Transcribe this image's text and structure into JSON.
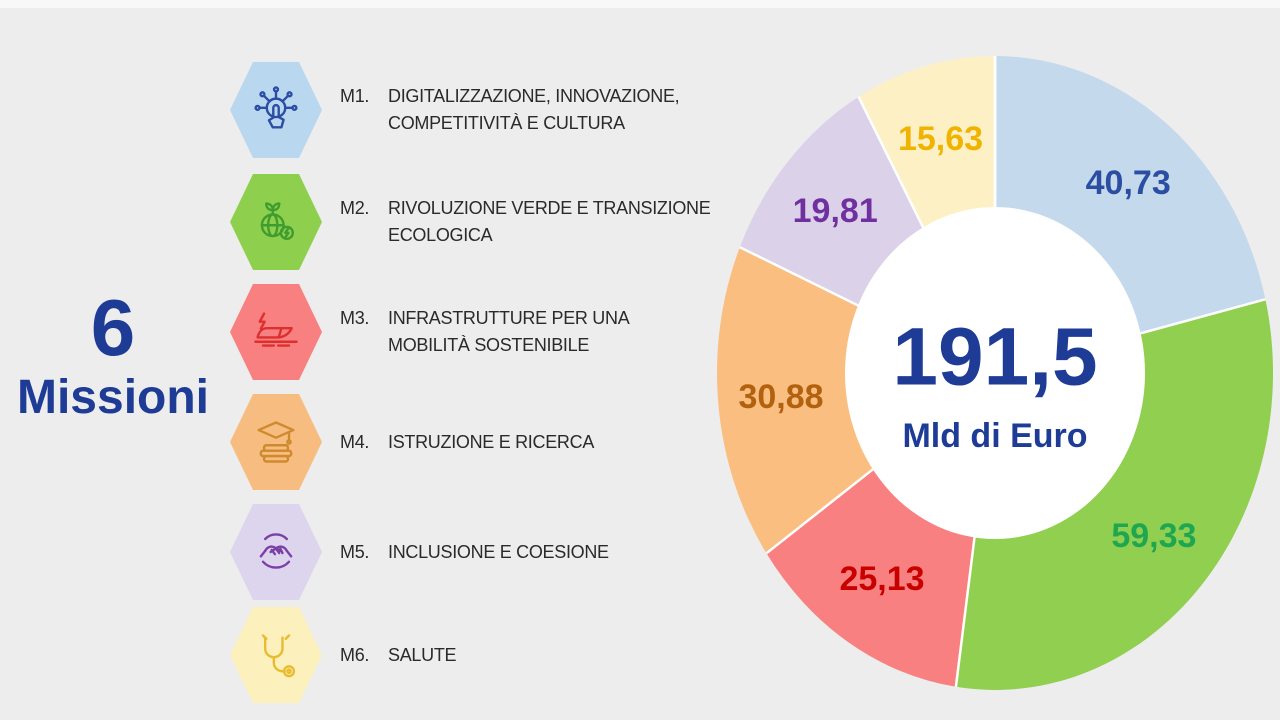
{
  "slide": {
    "background_color": "#EDEDED"
  },
  "header": {
    "big_number": "6",
    "subtitle": "Missioni",
    "text_color": "#1E3C96"
  },
  "missions": [
    {
      "code": "M1.",
      "line1": "DIGITALIZZAZIONE, INNOVAZIONE,",
      "line2": "COMPETITIVITÀ E CULTURA",
      "hex_color": "#B9D7EF",
      "icon": "digital-touch-icon",
      "icon_color": "#2B4DA3"
    },
    {
      "code": "M2.",
      "line1": "RIVOLUZIONE VERDE E TRANSIZIONE",
      "line2": "ECOLOGICA",
      "hex_color": "#8ED04E",
      "icon": "green-earth-icon",
      "icon_color": "#3F9C2E"
    },
    {
      "code": "M3.",
      "line1": "INFRASTRUTTURE PER UNA",
      "line2": "MOBILITÀ SOSTENIBILE",
      "hex_color": "#F98080",
      "icon": "train-icon",
      "icon_color": "#DC2F2F"
    },
    {
      "code": "M4.",
      "line1": "ISTRUZIONE E RICERCA",
      "line2": "",
      "hex_color": "#F7BD80",
      "icon": "education-icon",
      "icon_color": "#D08A2E"
    },
    {
      "code": "M5.",
      "line1": "INCLUSIONE E COESIONE",
      "line2": "",
      "hex_color": "#DDD4ED",
      "icon": "inclusion-hands-icon",
      "icon_color": "#7B3FA8"
    },
    {
      "code": "M6.",
      "line1": "SALUTE",
      "line2": "",
      "hex_color": "#FCF0BC",
      "icon": "stethoscope-icon",
      "icon_color": "#E8BC2E"
    }
  ],
  "chart_data": {
    "type": "pie",
    "subtype": "donut",
    "direction": "clockwise",
    "start_angle_deg": 0,
    "legend_position": "left",
    "center_value": "191,5",
    "center_unit": "Mld di Euro",
    "center_text_color": "#1E3C96",
    "total": 191.5,
    "slices": [
      {
        "name": "M1",
        "value": 40.73,
        "label": "40,73",
        "color": "#C5D9ED",
        "label_color": "#2B4EA2"
      },
      {
        "name": "M2",
        "value": 59.33,
        "label": "59,33",
        "color": "#90CF4F",
        "label_color": "#1EA750"
      },
      {
        "name": "M3",
        "value": 25.13,
        "label": "25,13",
        "color": "#F98080",
        "label_color": "#C80000"
      },
      {
        "name": "M4",
        "value": 30.88,
        "label": "30,88",
        "color": "#FABE80",
        "label_color": "#B2610E"
      },
      {
        "name": "M5",
        "value": 19.81,
        "label": "19,81",
        "color": "#DBD2E9",
        "label_color": "#7030A0"
      },
      {
        "name": "M6",
        "value": 15.63,
        "label": "15,63",
        "color": "#FCF0C4",
        "label_color": "#F0B400"
      }
    ]
  }
}
